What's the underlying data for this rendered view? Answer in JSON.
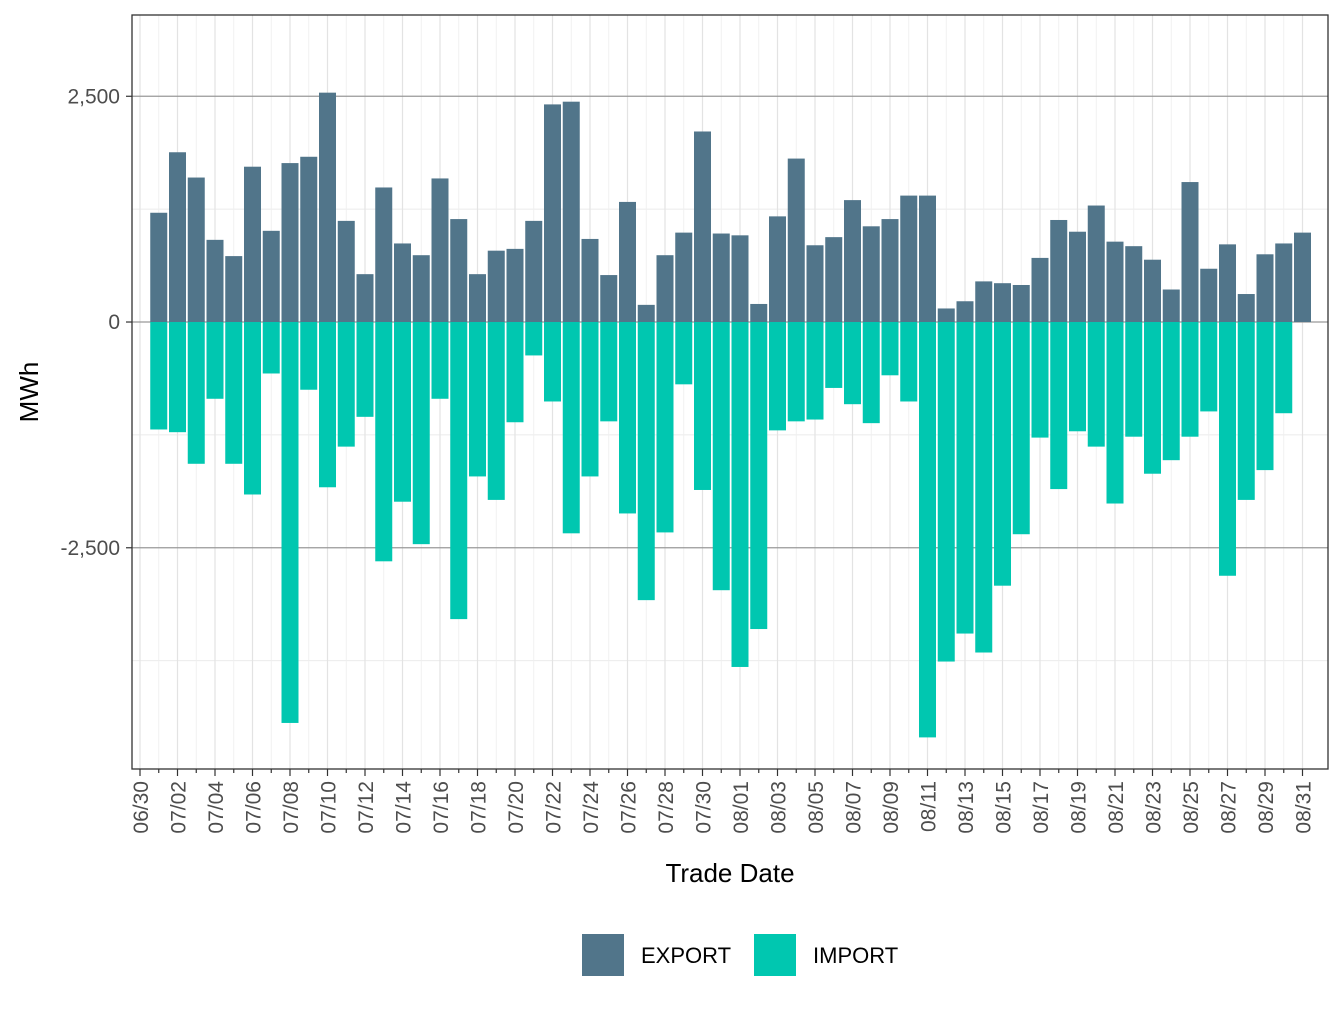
{
  "chart_data": {
    "type": "bar",
    "stacked": true,
    "xlabel": "Trade Date",
    "ylabel": "MWh",
    "ylim": [
      -4950,
      3400
    ],
    "yticks": [
      2500,
      0,
      -2500
    ],
    "ytick_labels": [
      "2,500",
      "0",
      "-2,500"
    ],
    "legend_position": "bottom",
    "categories": [
      "06/30",
      "07/01",
      "07/02",
      "07/03",
      "07/04",
      "07/05",
      "07/06",
      "07/07",
      "07/08",
      "07/09",
      "07/10",
      "07/11",
      "07/12",
      "07/13",
      "07/14",
      "07/15",
      "07/16",
      "07/17",
      "07/18",
      "07/19",
      "07/20",
      "07/21",
      "07/22",
      "07/23",
      "07/24",
      "07/25",
      "07/26",
      "07/27",
      "07/28",
      "07/29",
      "07/30",
      "07/31",
      "08/01",
      "08/02",
      "08/03",
      "08/04",
      "08/05",
      "08/06",
      "08/07",
      "08/08",
      "08/09",
      "08/10",
      "08/11",
      "08/12",
      "08/13",
      "08/14",
      "08/15",
      "08/16",
      "08/17",
      "08/18",
      "08/19",
      "08/20",
      "08/21",
      "08/22",
      "08/23",
      "08/24",
      "08/25",
      "08/26",
      "08/27",
      "08/28",
      "08/29",
      "08/30",
      "08/31"
    ],
    "xtick_labels": [
      "06/30",
      "07/02",
      "07/04",
      "07/06",
      "07/08",
      "07/10",
      "07/12",
      "07/14",
      "07/16",
      "07/18",
      "07/20",
      "07/22",
      "07/24",
      "07/26",
      "07/28",
      "07/30",
      "08/01",
      "08/03",
      "08/05",
      "08/07",
      "08/09",
      "08/11",
      "08/13",
      "08/15",
      "08/17",
      "08/19",
      "08/21",
      "08/23",
      "08/25",
      "08/27",
      "08/29",
      "08/31"
    ],
    "series": [
      {
        "name": "EXPORT",
        "color": "#51758a",
        "values": [
          null,
          1210,
          1880,
          1600,
          910,
          730,
          1720,
          1010,
          1760,
          1830,
          2540,
          1120,
          530,
          1490,
          870,
          740,
          1590,
          1140,
          530,
          790,
          810,
          1120,
          2410,
          2440,
          920,
          520,
          1330,
          190,
          740,
          990,
          2110,
          980,
          960,
          200,
          1170,
          1810,
          850,
          940,
          1350,
          1060,
          1140,
          1400,
          1400,
          150,
          230,
          450,
          430,
          410,
          710,
          1130,
          1000,
          1290,
          890,
          840,
          690,
          360,
          1550,
          590,
          860,
          310,
          750,
          870,
          990
        ]
      },
      {
        "name": "IMPORT",
        "color": "#00c7b0",
        "values": [
          null,
          -1190,
          -1220,
          -1570,
          -850,
          -1570,
          -1910,
          -570,
          -4440,
          -750,
          -1830,
          -1380,
          -1050,
          -2650,
          -1990,
          -2460,
          -850,
          -3290,
          -1710,
          -1970,
          -1110,
          -370,
          -880,
          -2340,
          -1710,
          -1100,
          -2120,
          -3080,
          -2330,
          -690,
          -1860,
          -2970,
          -3820,
          -3400,
          -1200,
          -1100,
          -1080,
          -730,
          -910,
          -1120,
          -590,
          -880,
          -4600,
          -3760,
          -3450,
          -3660,
          -2920,
          -2350,
          -1280,
          -1850,
          -1210,
          -1380,
          -2010,
          -1270,
          -1680,
          -1530,
          -1270,
          -990,
          -2810,
          -1970,
          -1640,
          -1010,
          null
        ]
      }
    ]
  }
}
